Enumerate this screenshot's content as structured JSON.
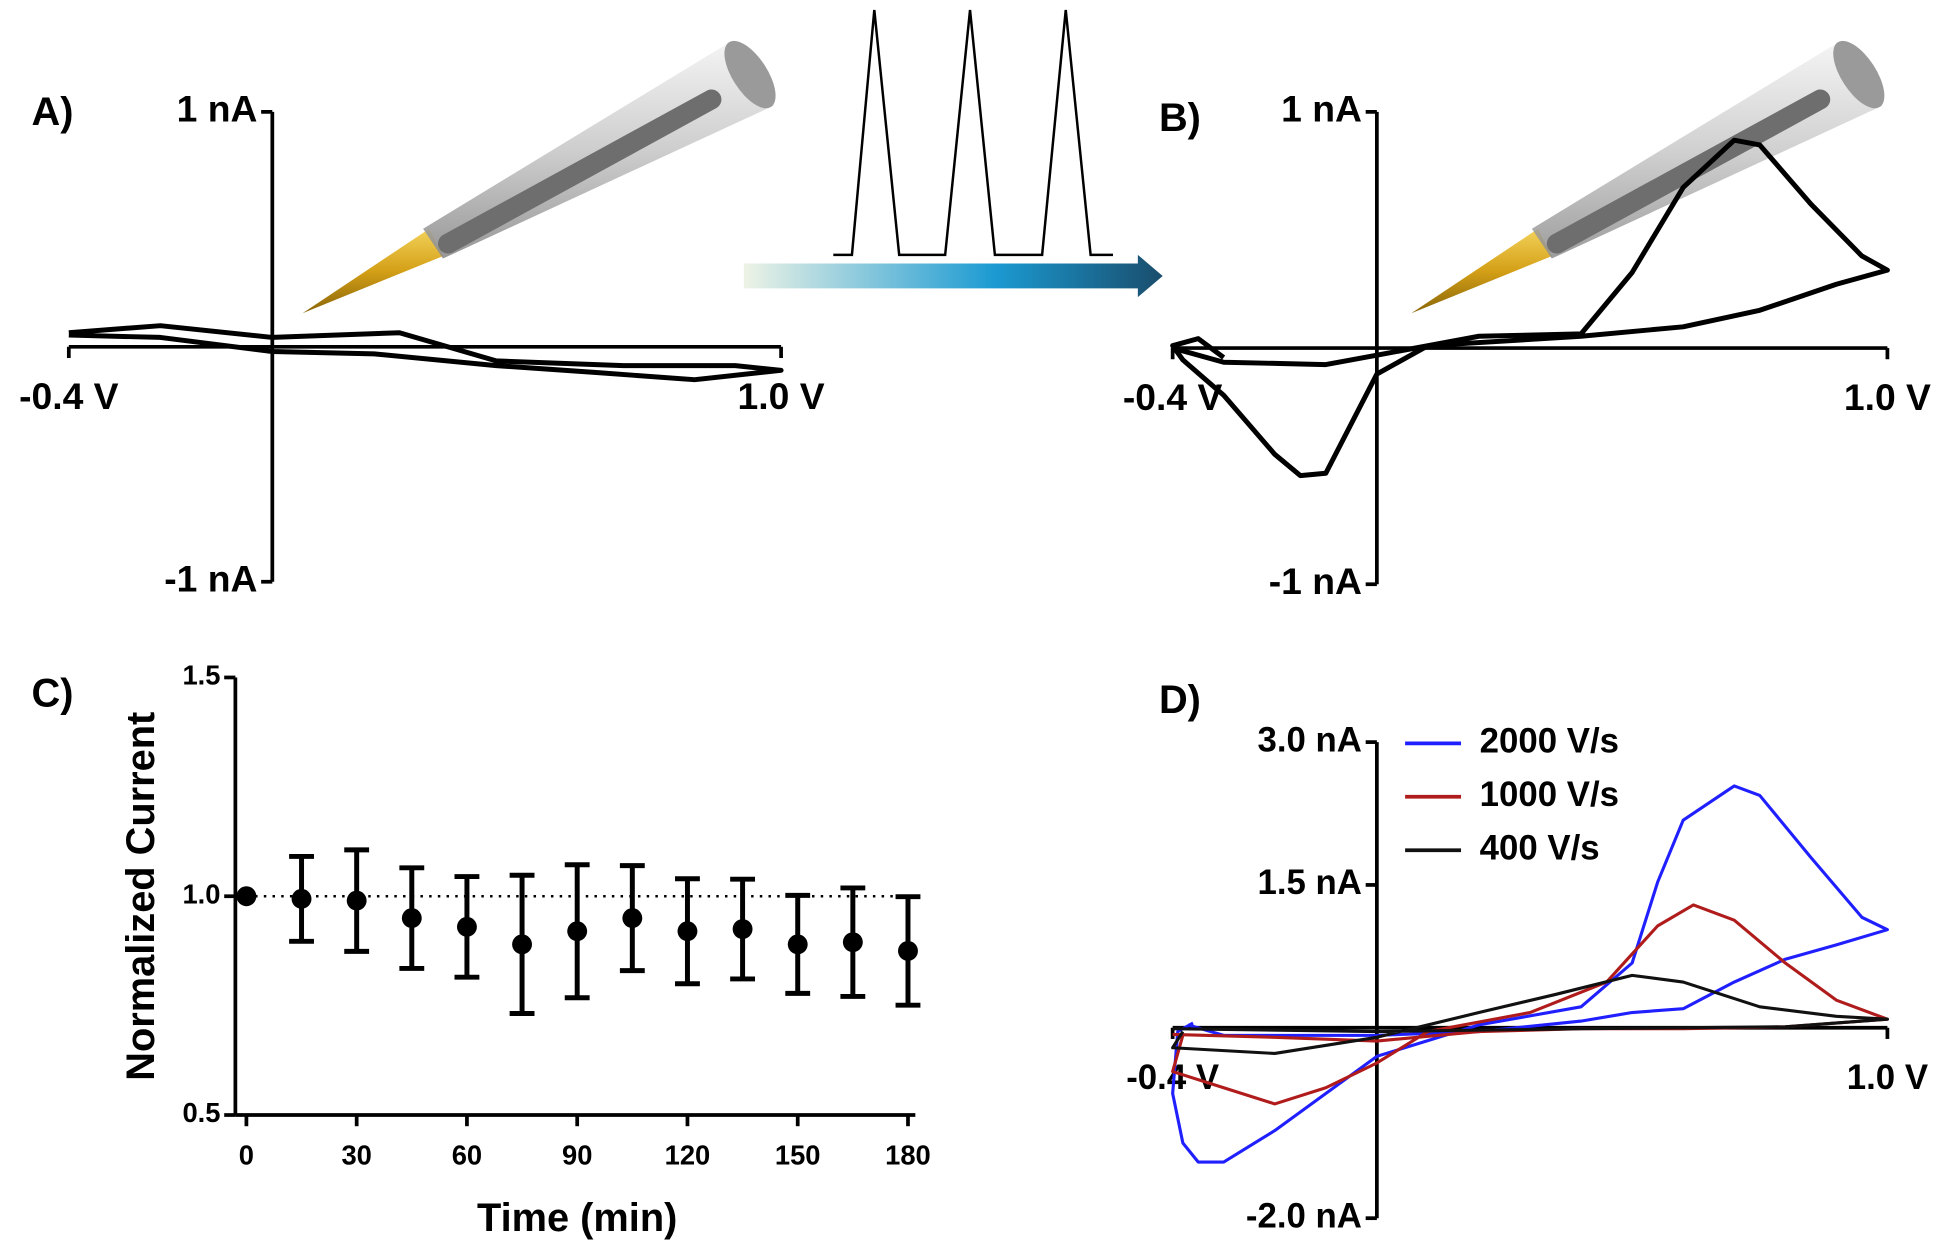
{
  "chart_data": [
    {
      "type": "line",
      "label": "A)",
      "color": "#000000",
      "x": [
        -0.4,
        -0.22,
        0,
        0.25,
        0.44,
        0.69,
        0.91,
        1.0,
        0.83,
        0.64,
        0.44,
        0.2,
        0,
        -0.22,
        -0.4
      ],
      "values": [
        0.06,
        0.09,
        0.04,
        0.06,
        -0.06,
        -0.08,
        -0.08,
        -0.1,
        -0.14,
        -0.11,
        -0.08,
        -0.03,
        -0.02,
        0.04,
        0.05
      ],
      "xlim": [
        -0.4,
        1.0
      ],
      "ylim": [
        -1,
        1
      ],
      "xticks": [
        {
          "value": -0.4,
          "label": "-0.4 V"
        },
        {
          "value": 1.0,
          "label": "1.0 V"
        }
      ],
      "yticks": [
        {
          "value": 1,
          "label": "1 nA"
        },
        {
          "value": -1,
          "label": "-1 nA"
        }
      ]
    },
    {
      "type": "line",
      "label": "B)",
      "color": "#000000",
      "x": [
        -0.4,
        -0.3,
        -0.1,
        0,
        0.2,
        0.4,
        0.5,
        0.6,
        0.7,
        0.75,
        0.85,
        0.95,
        1.0,
        0.9,
        0.75,
        0.6,
        0.4,
        0.1,
        0,
        -0.05,
        -0.1,
        -0.15,
        -0.2,
        -0.3,
        -0.38,
        -0.4,
        -0.35,
        -0.3
      ],
      "values": [
        0,
        -0.06,
        -0.07,
        -0.03,
        0.05,
        0.06,
        0.32,
        0.68,
        0.88,
        0.86,
        0.61,
        0.39,
        0.33,
        0.27,
        0.16,
        0.09,
        0.05,
        0.01,
        -0.11,
        -0.32,
        -0.53,
        -0.54,
        -0.45,
        -0.2,
        -0.05,
        0.01,
        0.04,
        -0.04
      ],
      "xlim": [
        -0.4,
        1.0
      ],
      "ylim": [
        -1,
        1
      ],
      "xticks": [
        {
          "value": -0.4,
          "label": "-0.4 V"
        },
        {
          "value": 1.0,
          "label": "1.0 V"
        }
      ],
      "yticks": [
        {
          "value": 1,
          "label": "1 nA"
        },
        {
          "value": -1,
          "label": "-1 nA"
        }
      ]
    },
    {
      "type": "errorbar",
      "label": "C)",
      "color": "#000000",
      "x": [
        0,
        15,
        30,
        45,
        60,
        75,
        90,
        105,
        120,
        135,
        150,
        165,
        180
      ],
      "values": [
        1,
        0.994,
        0.99,
        0.95,
        0.93,
        0.89,
        0.92,
        0.95,
        0.92,
        0.925,
        0.89,
        0.895,
        0.875
      ],
      "errors": [
        null,
        0.097,
        0.116,
        0.115,
        0.115,
        0.158,
        0.152,
        0.12,
        0.12,
        0.114,
        0.112,
        0.124,
        0.124
      ],
      "reference_line": 1,
      "xlabel": "Time (min)",
      "ylabel": "Normalized Current",
      "xlim": [
        -3,
        182
      ],
      "ylim": [
        0.5,
        1.5
      ],
      "xticks": [
        0,
        30,
        60,
        90,
        120,
        150,
        180
      ],
      "yticks": [
        {
          "value": 0.5,
          "label": "0.5"
        },
        {
          "value": 1.0,
          "label": "1.0"
        },
        {
          "value": 1.5,
          "label": "1.5"
        }
      ]
    },
    {
      "type": "line",
      "label": "D)",
      "series": [
        {
          "name": "2000 V/s",
          "color": "#1f1fff",
          "x": [
            -0.37,
            -0.3,
            0,
            0.2,
            0.4,
            0.5,
            0.6,
            0.7,
            0.8,
            0.9,
            1.0,
            0.95,
            0.85,
            0.75,
            0.7,
            0.6,
            0.55,
            0.5,
            0.4,
            0.2,
            0,
            -0.1,
            -0.2,
            -0.3,
            -0.35,
            -0.38,
            -0.4,
            -0.39,
            -0.36
          ],
          "values": [
            0.03,
            -0.08,
            -0.08,
            -0.04,
            0.07,
            0.16,
            0.2,
            0.48,
            0.72,
            0.87,
            1.03,
            1.16,
            1.79,
            2.44,
            2.54,
            2.18,
            1.53,
            0.68,
            0.22,
            0.03,
            -0.3,
            -0.69,
            -1.08,
            -1.41,
            -1.41,
            -1.21,
            -0.69,
            -0.04,
            0.05
          ]
        },
        {
          "name": "1000 V/s",
          "color": "#b01c1c",
          "x": [
            -0.4,
            -0.2,
            0,
            0.2,
            0.4,
            0.6,
            0.8,
            1.0,
            0.9,
            0.8,
            0.7,
            0.62,
            0.55,
            0.45,
            0.3,
            0.1,
            0,
            -0.1,
            -0.2,
            -0.3,
            -0.4,
            -0.38
          ],
          "values": [
            -0.07,
            -0.1,
            -0.14,
            -0.04,
            -0.01,
            -0.01,
            0.01,
            0.09,
            0.29,
            0.68,
            1.13,
            1.29,
            1.07,
            0.48,
            0.16,
            -0.04,
            -0.37,
            -0.63,
            -0.8,
            -0.63,
            -0.46,
            -0.08
          ]
        },
        {
          "name": "400 V/s",
          "color": "#111111",
          "x": [
            -0.4,
            0,
            0.4,
            0.8,
            1.0,
            0.9,
            0.75,
            0.6,
            0.5,
            0.35,
            0.2,
            0,
            -0.2,
            -0.4,
            -0.38
          ],
          "values": [
            -0.01,
            -0.04,
            -0.01,
            0.01,
            0.09,
            0.12,
            0.22,
            0.48,
            0.55,
            0.35,
            0.16,
            -0.1,
            -0.27,
            -0.21,
            -0.04
          ]
        }
      ],
      "xlim": [
        -0.4,
        1.0
      ],
      "ylim": [
        -2,
        3
      ],
      "xticks": [
        {
          "value": -0.4,
          "label": "-0.4 V"
        },
        {
          "value": 1.0,
          "label": "1.0 V"
        }
      ],
      "yticks": [
        {
          "value": 3.0,
          "label": "3.0 nA"
        },
        {
          "value": 1.5,
          "label": "1.5 nA"
        },
        {
          "value": -2.0,
          "label": "-2.0 nA"
        }
      ]
    }
  ]
}
